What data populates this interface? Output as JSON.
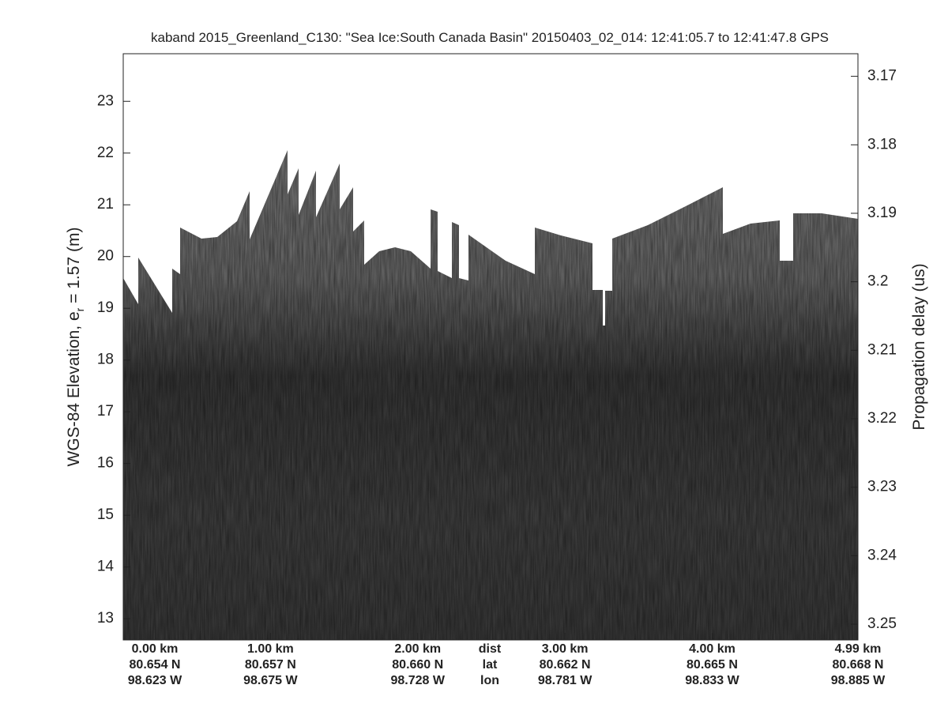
{
  "chart_data": {
    "type": "echogram",
    "title": "kaband 2015_Greenland_C130: \"Sea Ice:South Canada Basin\"  20150403_02_014: 12:41:05.7 to 12:41:47.8 GPS",
    "ylabel": {
      "before": "WGS-84 Elevation, e",
      "sub": "r",
      "after": " = 1.57 (m)"
    },
    "y2label": "Propagation delay (us)",
    "ylim": [
      12.59,
      23.92
    ],
    "yticks": [
      13,
      14,
      15,
      16,
      17,
      18,
      19,
      20,
      21,
      22,
      23
    ],
    "y2lim": [
      3.2523,
      3.1667
    ],
    "y2ticks": [
      3.17,
      3.18,
      3.19,
      3.2,
      3.21,
      3.22,
      3.23,
      3.24,
      3.25
    ],
    "xlim": [
      0,
      4.99
    ],
    "xticks": [
      {
        "value": 0,
        "label": "0.00 km"
      },
      {
        "value": 1,
        "label": "1.00 km"
      },
      {
        "value": 2,
        "label": "2.00 km"
      },
      {
        "value": 3,
        "label": "3.00 km"
      },
      {
        "value": 4,
        "label": "4.00 km"
      },
      {
        "value": 4.99,
        "label": "4.99 km"
      }
    ],
    "lat_labels": [
      "80.654 N",
      "80.657 N",
      "80.660 N",
      "80.662 N",
      "80.665 N",
      "80.668 N"
    ],
    "lon_labels": [
      "98.623 W",
      "98.675 W",
      "98.728 W",
      "98.781 W",
      "98.833 W",
      "98.885 W"
    ],
    "x_row_labels": [
      "dist",
      "lat",
      "lon"
    ]
  }
}
